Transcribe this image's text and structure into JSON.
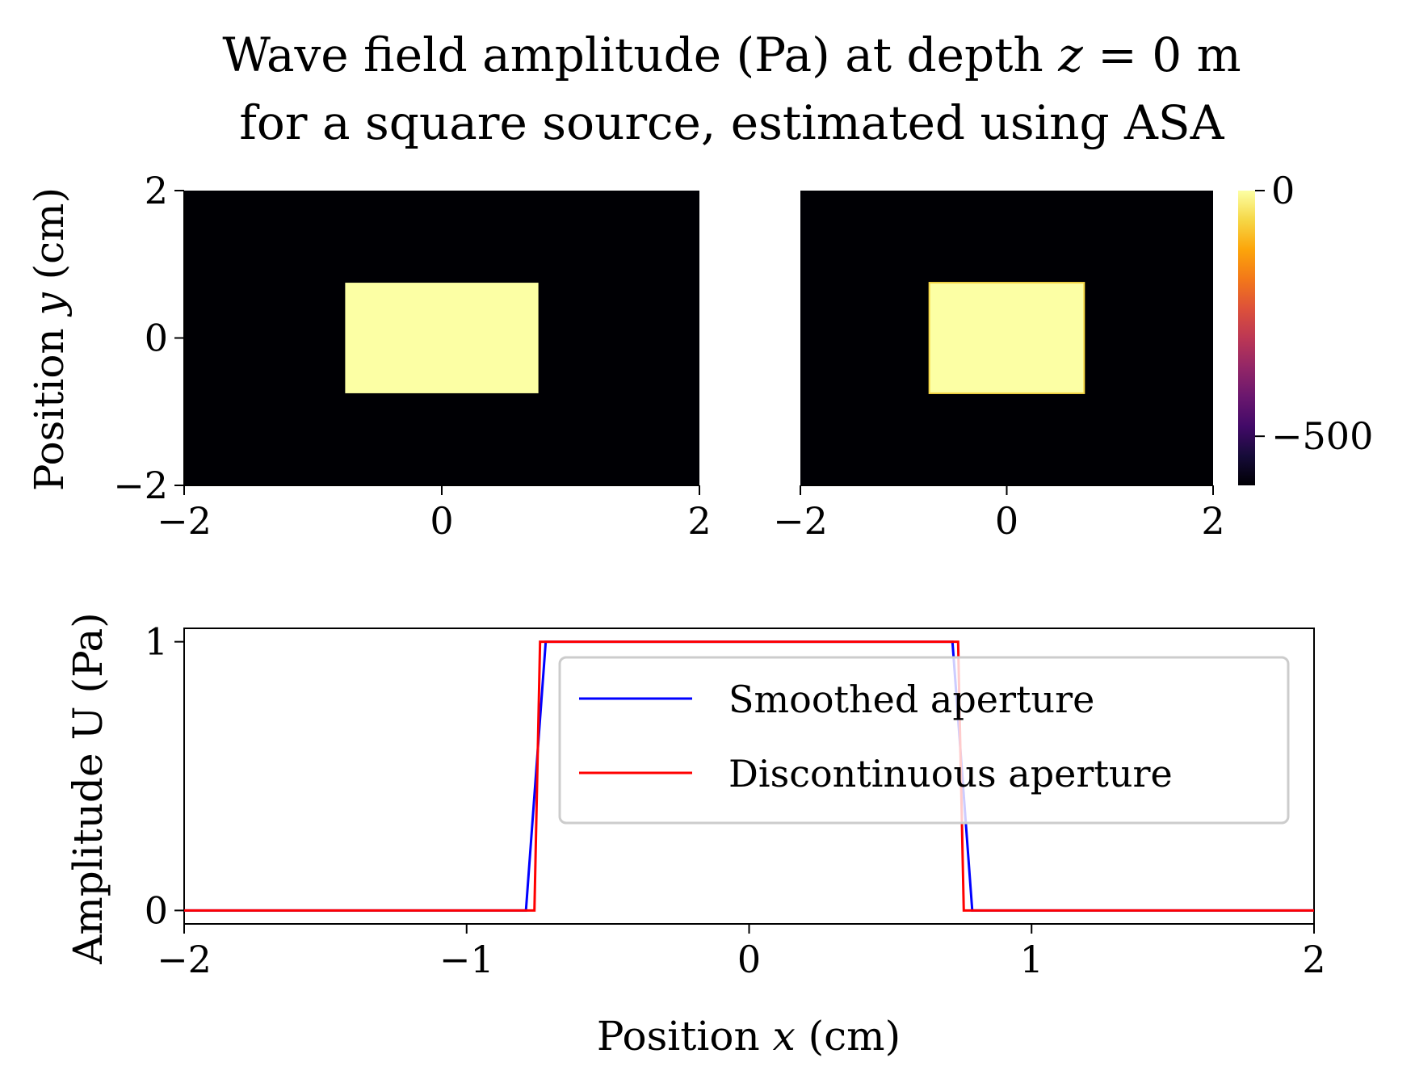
{
  "chart_data": {
    "title_line1": "Wave field amplitude (Pa) at depth z = 0 m",
    "title_line2": "for a square source, estimated using ASA",
    "title_parts": [
      "Wave field amplitude (Pa) at depth ",
      "z",
      " = 0 m"
    ],
    "panels": [
      {
        "id": "smoothed-field",
        "type": "heatmap",
        "xlim": [
          -2,
          2
        ],
        "ylim": [
          -2,
          2
        ],
        "xticks": [
          "−2",
          "0",
          "2"
        ],
        "yticks": [
          "−2",
          "0",
          "2"
        ],
        "background_value": -600,
        "source": {
          "x": [
            -0.75,
            0.75
          ],
          "y": [
            -0.75,
            0.75
          ],
          "value": 0
        },
        "ylabel_parts": [
          "Position ",
          "y",
          " (cm)"
        ]
      },
      {
        "id": "discontinuous-field",
        "type": "heatmap",
        "xlim": [
          -2,
          2
        ],
        "ylim": [
          -2,
          2
        ],
        "xticks": [
          "−2",
          "0",
          "2"
        ],
        "background_value": -600,
        "source": {
          "x": [
            -0.75,
            0.75
          ],
          "y": [
            -0.75,
            0.75
          ],
          "value": 0
        }
      }
    ],
    "colorbar": {
      "colormap": "inferno",
      "range": [
        -600,
        0
      ],
      "ticks": [
        {
          "value": 0,
          "label": "0"
        },
        {
          "value": -500,
          "label": "−500"
        }
      ]
    },
    "profile": {
      "type": "line",
      "xlim": [
        -2,
        2
      ],
      "ylim": [
        -0.05,
        1.05
      ],
      "xticks": [
        {
          "value": -2,
          "label": "−2"
        },
        {
          "value": -1,
          "label": "−1"
        },
        {
          "value": 0,
          "label": "0"
        },
        {
          "value": 1,
          "label": "1"
        },
        {
          "value": 2,
          "label": "2"
        }
      ],
      "yticks": [
        {
          "value": 0,
          "label": "0"
        },
        {
          "value": 1,
          "label": "1"
        }
      ],
      "xlabel_parts": [
        "Position ",
        "x",
        " (cm)"
      ],
      "ylabel": "Amplitude U (Pa)",
      "legend_position": "upper right",
      "series": [
        {
          "name": "Smoothed aperture",
          "color": "#0000ff",
          "x": [
            -2,
            -0.79,
            -0.72,
            0.72,
            0.79,
            2
          ],
          "y": [
            0,
            0,
            1,
            1,
            0,
            0
          ]
        },
        {
          "name": "Discontinuous aperture",
          "color": "#ff0000",
          "x": [
            -2,
            -0.76,
            -0.74,
            0.74,
            0.76,
            2
          ],
          "y": [
            0,
            0,
            1,
            1,
            0,
            0
          ]
        }
      ]
    }
  }
}
